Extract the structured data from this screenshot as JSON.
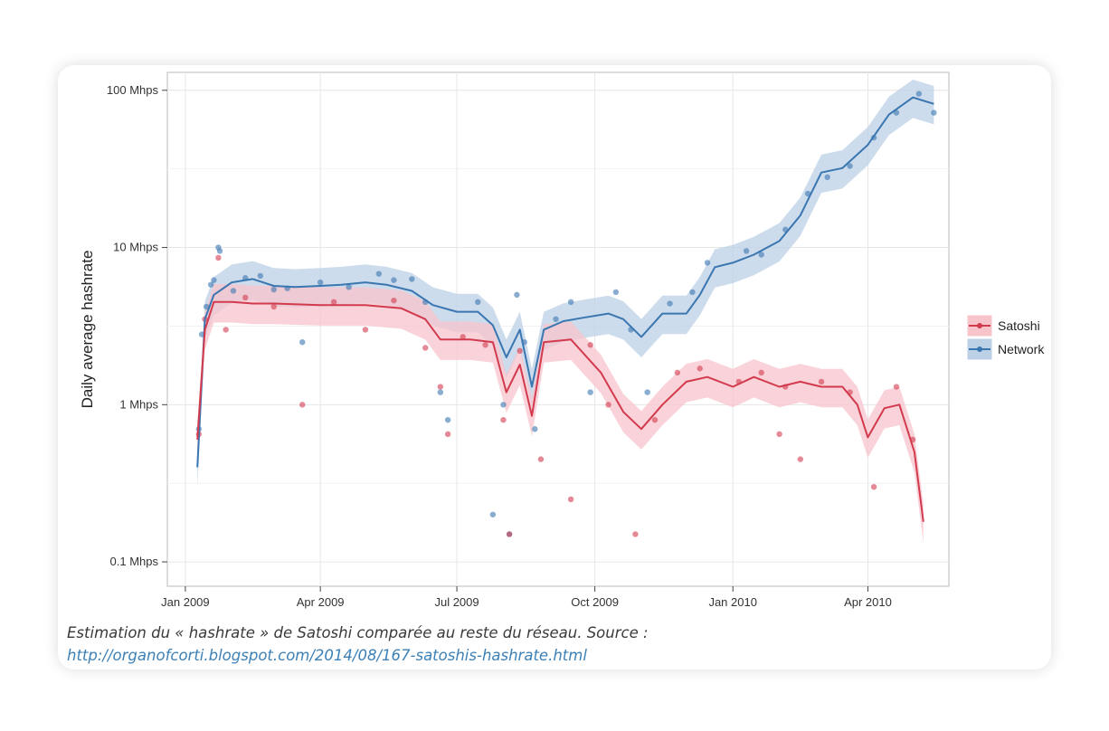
{
  "caption": {
    "text": "Estimation du « hashrate » de Satoshi comparée au reste du réseau. Source :",
    "link": "http://organofcorti.blogspot.com/2014/08/167-satoshis-hashrate.html"
  },
  "chart_data": {
    "type": "scatter",
    "title": "",
    "xlabel": "",
    "ylabel": "Daily average hashrate",
    "y_scale": "log",
    "ylim_mhps": [
      0.07,
      130
    ],
    "xlim": [
      "2008-12-20",
      "2010-05-25"
    ],
    "y_ticks": [
      {
        "value": 0.1,
        "label": "0.1 Mhps"
      },
      {
        "value": 1,
        "label": "1 Mhps"
      },
      {
        "value": 10,
        "label": "10 Mhps"
      },
      {
        "value": 100,
        "label": "100 Mhps"
      }
    ],
    "x_ticks": [
      {
        "value": "2009-01-01",
        "label": "Jan 2009"
      },
      {
        "value": "2009-04-01",
        "label": "Apr 2009"
      },
      {
        "value": "2009-07-01",
        "label": "Jul 2009"
      },
      {
        "value": "2009-10-01",
        "label": "Oct 2009"
      },
      {
        "value": "2010-01-01",
        "label": "Jan 2010"
      },
      {
        "value": "2010-04-01",
        "label": "Apr 2010"
      }
    ],
    "grid": true,
    "legend_position": "right",
    "series": [
      {
        "name": "Network",
        "color": "#3a76b0",
        "band_color": "#bcd0e6",
        "trend": [
          [
            "2009-01-09",
            0.4
          ],
          [
            "2009-01-14",
            3.5
          ],
          [
            "2009-01-20",
            5.0
          ],
          [
            "2009-02-01",
            6.0
          ],
          [
            "2009-02-15",
            6.3
          ],
          [
            "2009-03-01",
            5.7
          ],
          [
            "2009-03-15",
            5.6
          ],
          [
            "2009-04-01",
            5.7
          ],
          [
            "2009-04-15",
            5.8
          ],
          [
            "2009-05-01",
            6.0
          ],
          [
            "2009-05-15",
            5.8
          ],
          [
            "2009-06-01",
            5.3
          ],
          [
            "2009-06-15",
            4.3
          ],
          [
            "2009-07-01",
            3.9
          ],
          [
            "2009-07-15",
            3.9
          ],
          [
            "2009-07-25",
            3.2
          ],
          [
            "2009-08-03",
            2.0
          ],
          [
            "2009-08-12",
            3.0
          ],
          [
            "2009-08-20",
            1.3
          ],
          [
            "2009-08-28",
            3.0
          ],
          [
            "2009-09-10",
            3.4
          ],
          [
            "2009-09-25",
            3.6
          ],
          [
            "2009-10-10",
            3.8
          ],
          [
            "2009-10-20",
            3.5
          ],
          [
            "2009-11-01",
            2.7
          ],
          [
            "2009-11-15",
            3.8
          ],
          [
            "2009-12-01",
            3.8
          ],
          [
            "2009-12-10",
            5.0
          ],
          [
            "2009-12-20",
            7.5
          ],
          [
            "2010-01-01",
            8.0
          ],
          [
            "2010-01-15",
            9.0
          ],
          [
            "2010-02-01",
            11.0
          ],
          [
            "2010-02-15",
            16.0
          ],
          [
            "2010-03-01",
            30.0
          ],
          [
            "2010-03-15",
            32.0
          ],
          [
            "2010-04-01",
            45.0
          ],
          [
            "2010-04-15",
            70.0
          ],
          [
            "2010-05-01",
            90.0
          ],
          [
            "2010-05-15",
            82.0
          ]
        ],
        "points": [
          [
            "2009-01-10",
            0.7
          ],
          [
            "2009-01-12",
            2.8
          ],
          [
            "2009-01-15",
            4.2
          ],
          [
            "2009-01-18",
            5.8
          ],
          [
            "2009-01-20",
            6.2
          ],
          [
            "2009-01-23",
            10.0
          ],
          [
            "2009-01-24",
            9.5
          ],
          [
            "2009-02-02",
            5.3
          ],
          [
            "2009-02-10",
            6.4
          ],
          [
            "2009-02-20",
            6.6
          ],
          [
            "2009-03-01",
            5.4
          ],
          [
            "2009-03-10",
            5.5
          ],
          [
            "2009-03-20",
            2.5
          ],
          [
            "2009-04-01",
            6.0
          ],
          [
            "2009-04-20",
            5.6
          ],
          [
            "2009-05-10",
            6.8
          ],
          [
            "2009-05-20",
            6.2
          ],
          [
            "2009-06-01",
            6.3
          ],
          [
            "2009-06-10",
            4.5
          ],
          [
            "2009-06-20",
            1.2
          ],
          [
            "2009-06-25",
            0.8
          ],
          [
            "2009-07-15",
            4.5
          ],
          [
            "2009-07-25",
            0.2
          ],
          [
            "2009-08-01",
            1.0
          ],
          [
            "2009-08-05",
            0.15
          ],
          [
            "2009-08-10",
            5.0
          ],
          [
            "2009-08-15",
            2.5
          ],
          [
            "2009-08-22",
            0.7
          ],
          [
            "2009-09-05",
            3.5
          ],
          [
            "2009-09-15",
            4.5
          ],
          [
            "2009-09-28",
            1.2
          ],
          [
            "2009-10-15",
            5.2
          ],
          [
            "2009-10-25",
            3.0
          ],
          [
            "2009-11-05",
            1.2
          ],
          [
            "2009-11-20",
            4.4
          ],
          [
            "2009-12-05",
            5.2
          ],
          [
            "2009-12-15",
            8.0
          ],
          [
            "2010-01-10",
            9.5
          ],
          [
            "2010-01-20",
            9.0
          ],
          [
            "2010-02-05",
            13.0
          ],
          [
            "2010-02-20",
            22.0
          ],
          [
            "2010-03-05",
            28.0
          ],
          [
            "2010-03-20",
            33.0
          ],
          [
            "2010-04-05",
            50.0
          ],
          [
            "2010-04-20",
            72.0
          ],
          [
            "2010-05-05",
            95.0
          ],
          [
            "2010-05-15",
            72.0
          ]
        ]
      },
      {
        "name": "Satoshi",
        "color": "#d23a4e",
        "band_color": "#f7c4cc",
        "trend": [
          [
            "2009-01-09",
            0.6
          ],
          [
            "2009-01-14",
            3.0
          ],
          [
            "2009-01-20",
            4.5
          ],
          [
            "2009-02-01",
            4.5
          ],
          [
            "2009-02-15",
            4.4
          ],
          [
            "2009-03-01",
            4.4
          ],
          [
            "2009-04-01",
            4.3
          ],
          [
            "2009-05-01",
            4.3
          ],
          [
            "2009-05-25",
            4.1
          ],
          [
            "2009-06-10",
            3.5
          ],
          [
            "2009-06-20",
            2.6
          ],
          [
            "2009-07-10",
            2.6
          ],
          [
            "2009-07-25",
            2.5
          ],
          [
            "2009-08-03",
            1.2
          ],
          [
            "2009-08-12",
            1.8
          ],
          [
            "2009-08-20",
            0.85
          ],
          [
            "2009-08-28",
            2.5
          ],
          [
            "2009-09-15",
            2.6
          ],
          [
            "2009-10-05",
            1.6
          ],
          [
            "2009-10-20",
            0.9
          ],
          [
            "2009-11-01",
            0.7
          ],
          [
            "2009-11-15",
            1.0
          ],
          [
            "2009-12-01",
            1.4
          ],
          [
            "2009-12-15",
            1.5
          ],
          [
            "2010-01-01",
            1.3
          ],
          [
            "2010-01-15",
            1.5
          ],
          [
            "2010-02-01",
            1.3
          ],
          [
            "2010-02-15",
            1.4
          ],
          [
            "2010-03-01",
            1.3
          ],
          [
            "2010-03-15",
            1.3
          ],
          [
            "2010-03-25",
            1.0
          ],
          [
            "2010-04-01",
            0.62
          ],
          [
            "2010-04-12",
            0.95
          ],
          [
            "2010-04-22",
            1.0
          ],
          [
            "2010-05-02",
            0.5
          ],
          [
            "2010-05-08",
            0.18
          ]
        ],
        "points": [
          [
            "2009-01-10",
            0.65
          ],
          [
            "2009-01-14",
            3.5
          ],
          [
            "2009-01-23",
            8.6
          ],
          [
            "2009-01-28",
            3.0
          ],
          [
            "2009-02-10",
            4.8
          ],
          [
            "2009-03-01",
            4.2
          ],
          [
            "2009-03-20",
            1.0
          ],
          [
            "2009-04-10",
            4.5
          ],
          [
            "2009-05-01",
            3.0
          ],
          [
            "2009-05-20",
            4.6
          ],
          [
            "2009-06-10",
            2.3
          ],
          [
            "2009-06-20",
            1.3
          ],
          [
            "2009-06-25",
            0.65
          ],
          [
            "2009-07-05",
            2.7
          ],
          [
            "2009-07-20",
            2.4
          ],
          [
            "2009-08-01",
            0.8
          ],
          [
            "2009-08-05",
            0.15
          ],
          [
            "2009-08-12",
            2.2
          ],
          [
            "2009-08-26",
            0.45
          ],
          [
            "2009-09-15",
            0.25
          ],
          [
            "2009-09-28",
            2.4
          ],
          [
            "2009-10-10",
            1.0
          ],
          [
            "2009-10-28",
            0.15
          ],
          [
            "2009-11-10",
            0.8
          ],
          [
            "2009-11-25",
            1.6
          ],
          [
            "2009-12-10",
            1.7
          ],
          [
            "2010-01-05",
            1.4
          ],
          [
            "2010-01-20",
            1.6
          ],
          [
            "2010-02-01",
            0.65
          ],
          [
            "2010-02-05",
            1.3
          ],
          [
            "2010-02-15",
            0.45
          ],
          [
            "2010-03-01",
            1.4
          ],
          [
            "2010-03-20",
            1.2
          ],
          [
            "2010-04-05",
            0.3
          ],
          [
            "2010-04-20",
            1.3
          ],
          [
            "2010-05-01",
            0.6
          ]
        ]
      }
    ]
  }
}
